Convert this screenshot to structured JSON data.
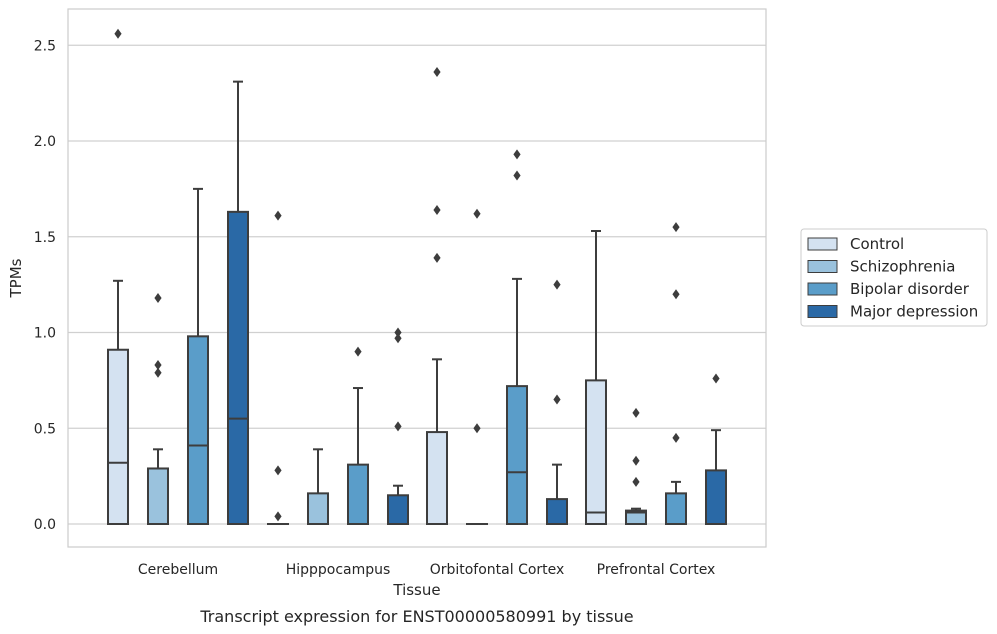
{
  "chart_data": {
    "type": "box",
    "title": "",
    "caption": "Transcript expression for ENST00000580991 by tissue",
    "xlabel": "Tissue",
    "ylabel": "TPMs",
    "ylim": [
      -0.12,
      2.69
    ],
    "yticks": [
      "0.0",
      "0.5",
      "1.0",
      "1.5",
      "2.0",
      "2.5"
    ],
    "grid": "y",
    "legend": {
      "placement": "right",
      "entries": [
        "Control",
        "Schizophrenia",
        "Bipolar disorder",
        "Major depression"
      ]
    },
    "categories": [
      "Cerebellum",
      "Hipppocampus",
      "Orbitofontal Cortex",
      "Prefrontal Cortex"
    ],
    "colors": [
      "#d4e2f1",
      "#9ac2dd",
      "#5a9dc9",
      "#2a69a6"
    ],
    "edge_color": "#3d3d3d",
    "series": [
      {
        "name": "Control",
        "boxes": [
          {
            "min": 0,
            "q1": 0,
            "median": 0.32,
            "q3": 0.91,
            "max": 1.27,
            "outliers": [
              2.56
            ]
          },
          {
            "min": 0,
            "q1": 0,
            "median": 0,
            "q3": 0,
            "max": 0,
            "outliers": [
              1.61,
              0.28,
              0.04
            ]
          },
          {
            "min": 0,
            "q1": 0,
            "median": 0,
            "q3": 0.48,
            "max": 0.86,
            "outliers": [
              2.36,
              1.64,
              1.39
            ]
          },
          {
            "min": 0,
            "q1": 0,
            "median": 0.06,
            "q3": 0.75,
            "max": 1.53,
            "outliers": []
          }
        ]
      },
      {
        "name": "Schizophrenia",
        "boxes": [
          {
            "min": 0,
            "q1": 0,
            "median": 0.29,
            "q3": 0.29,
            "max": 0.39,
            "outliers": [
              1.18,
              0.83,
              0.79
            ]
          },
          {
            "min": 0,
            "q1": 0,
            "median": 0,
            "q3": 0.16,
            "max": 0.39,
            "outliers": []
          },
          {
            "min": 0,
            "q1": 0,
            "median": 0,
            "q3": 0,
            "max": 0,
            "outliers": [
              1.62,
              0.5
            ]
          },
          {
            "min": 0,
            "q1": 0,
            "median": 0.06,
            "q3": 0.07,
            "max": 0.08,
            "outliers": [
              0.58,
              0.33,
              0.22
            ]
          }
        ]
      },
      {
        "name": "Bipolar disorder",
        "boxes": [
          {
            "min": 0,
            "q1": 0,
            "median": 0.41,
            "q3": 0.98,
            "max": 1.75,
            "outliers": []
          },
          {
            "min": 0,
            "q1": 0,
            "median": 0,
            "q3": 0.31,
            "max": 0.71,
            "outliers": [
              0.9
            ]
          },
          {
            "min": 0,
            "q1": 0,
            "median": 0.27,
            "q3": 0.72,
            "max": 1.28,
            "outliers": [
              1.93,
              1.82
            ]
          },
          {
            "min": 0,
            "q1": 0,
            "median": 0,
            "q3": 0.16,
            "max": 0.22,
            "outliers": [
              1.55,
              1.2,
              0.45
            ]
          }
        ]
      },
      {
        "name": "Major depression",
        "boxes": [
          {
            "min": 0,
            "q1": 0,
            "median": 0.55,
            "q3": 1.63,
            "max": 2.31,
            "outliers": []
          },
          {
            "min": 0,
            "q1": 0,
            "median": 0,
            "q3": 0.15,
            "max": 0.2,
            "outliers": [
              1.0,
              0.97,
              0.51
            ]
          },
          {
            "min": 0,
            "q1": 0,
            "median": 0,
            "q3": 0.13,
            "max": 0.31,
            "outliers": [
              1.25,
              0.65
            ]
          },
          {
            "min": 0,
            "q1": 0,
            "median": 0,
            "q3": 0.28,
            "max": 0.49,
            "outliers": [
              0.76
            ]
          }
        ]
      }
    ]
  }
}
